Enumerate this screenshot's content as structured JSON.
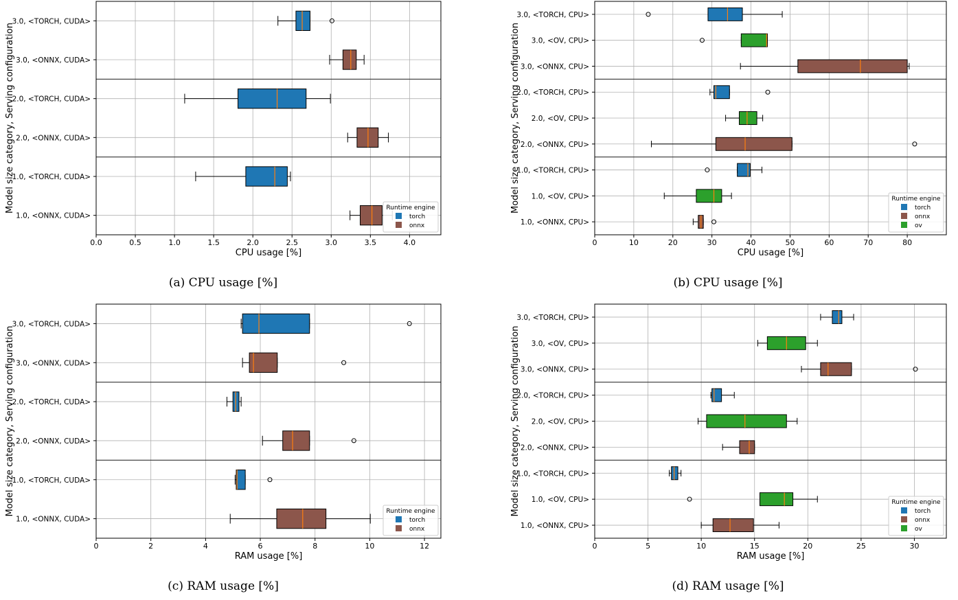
{
  "colors": {
    "torch": "#1f77b4",
    "onnx": "#8c564b",
    "ov": "#2ca02c",
    "median": "#ff7f0e",
    "grid": "#b0b0b0"
  },
  "chart_data": [
    {
      "type": "box",
      "caption": "(a) CPU usage [%]",
      "xlabel": "CPU usage [%]",
      "ylabel": "Model size category, Serving configuration",
      "xlim": [
        0,
        4.4
      ],
      "xticks": [
        "0.0",
        "0.5",
        "1.0",
        "1.5",
        "2.0",
        "2.5",
        "3.0",
        "3.5",
        "4.0"
      ],
      "xtick_values": [
        0,
        0.5,
        1,
        1.5,
        2,
        2.5,
        3,
        3.5,
        4
      ],
      "grid": true,
      "legend": {
        "title": "Runtime engine",
        "entries": [
          "torch",
          "onnx"
        ],
        "placement": "bottom-right"
      },
      "group_separators_after": [
        2,
        4
      ],
      "rows": [
        {
          "label": "3.0, <TORCH, CUDA>",
          "engine": "torch",
          "whislo": 2.32,
          "q1": 2.55,
          "med": 2.63,
          "q3": 2.73,
          "whishi": 2.73,
          "fliers": [
            3.01
          ]
        },
        {
          "label": "3.0, <ONNX, CUDA>",
          "engine": "onnx",
          "whislo": 2.98,
          "q1": 3.15,
          "med": 3.25,
          "q3": 3.32,
          "whishi": 3.42,
          "fliers": []
        },
        {
          "label": "2.0, <TORCH, CUDA>",
          "engine": "torch",
          "whislo": 1.13,
          "q1": 1.81,
          "med": 2.31,
          "q3": 2.68,
          "whishi": 2.99,
          "fliers": []
        },
        {
          "label": "2.0, <ONNX, CUDA>",
          "engine": "onnx",
          "whislo": 3.21,
          "q1": 3.33,
          "med": 3.47,
          "q3": 3.6,
          "whishi": 3.73,
          "fliers": []
        },
        {
          "label": "1.0, <TORCH, CUDA>",
          "engine": "torch",
          "whislo": 1.27,
          "q1": 1.91,
          "med": 2.28,
          "q3": 2.44,
          "whishi": 2.48,
          "fliers": []
        },
        {
          "label": "1.0, <ONNX, CUDA>",
          "engine": "onnx",
          "whislo": 3.24,
          "q1": 3.37,
          "med": 3.52,
          "q3": 3.65,
          "whishi": 3.78,
          "fliers": []
        }
      ]
    },
    {
      "type": "box",
      "caption": "(b) CPU usage [%]",
      "xlabel": "CPU usage [%]",
      "ylabel": "Model size category, Serving configuration",
      "xlim": [
        0,
        90
      ],
      "xticks": [
        "0",
        "10",
        "20",
        "30",
        "40",
        "50",
        "60",
        "70",
        "80"
      ],
      "xtick_values": [
        0,
        10,
        20,
        30,
        40,
        50,
        60,
        70,
        80
      ],
      "grid": true,
      "legend": {
        "title": "Runtime engine",
        "entries": [
          "torch",
          "onnx",
          "ov"
        ],
        "placement": "bottom-right"
      },
      "group_separators_after": [
        3,
        6
      ],
      "rows": [
        {
          "label": "3.0, <TORCH, CPU>",
          "engine": "torch",
          "whislo": 29,
          "q1": 29,
          "med": 34,
          "q3": 37.8,
          "whishi": 48,
          "fliers": [
            13.7
          ]
        },
        {
          "label": "3.0, <OV, CPU>",
          "engine": "ov",
          "whislo": 37.5,
          "q1": 37.5,
          "med": 44,
          "q3": 44.2,
          "whishi": 44.2,
          "fliers": [
            27.5
          ]
        },
        {
          "label": "3.0, <ONNX, CPU>",
          "engine": "onnx",
          "whislo": 37.3,
          "q1": 52,
          "med": 68,
          "q3": 80,
          "whishi": 80.5,
          "fliers": []
        },
        {
          "label": "2.0, <TORCH, CPU>",
          "engine": "torch",
          "whislo": 29.5,
          "q1": 30.5,
          "med": 31,
          "q3": 34.5,
          "whishi": 34.5,
          "fliers": [
            44.3
          ]
        },
        {
          "label": "2.0, <OV, CPU>",
          "engine": "ov",
          "whislo": 33.5,
          "q1": 37,
          "med": 39,
          "q3": 41.5,
          "whishi": 43,
          "fliers": []
        },
        {
          "label": "2.0, <ONNX, CPU>",
          "engine": "onnx",
          "whislo": 14.5,
          "q1": 31,
          "med": 38.5,
          "q3": 50.5,
          "whishi": 50.5,
          "fliers": [
            81.9
          ]
        },
        {
          "label": "1.0, <TORCH, CPU>",
          "engine": "torch",
          "whislo": 36.5,
          "q1": 36.5,
          "med": 39.2,
          "q3": 39.8,
          "whishi": 42.8,
          "fliers": [
            28.8
          ]
        },
        {
          "label": "1.0, <OV, CPU>",
          "engine": "ov",
          "whislo": 17.8,
          "q1": 26,
          "med": 30.5,
          "q3": 32.5,
          "whishi": 35,
          "fliers": []
        },
        {
          "label": "1.0, <ONNX, CPU>",
          "engine": "onnx",
          "whislo": 25.2,
          "q1": 26.5,
          "med": 27.2,
          "q3": 27.8,
          "whishi": 27.8,
          "fliers": [
            30.5
          ]
        }
      ]
    },
    {
      "type": "box",
      "caption": "(c) RAM usage [%]",
      "xlabel": "RAM usage [%]",
      "ylabel": "Model size category, Serving configuration",
      "xlim": [
        0,
        12.6
      ],
      "xticks": [
        "0",
        "2",
        "4",
        "6",
        "8",
        "10",
        "12"
      ],
      "xtick_values": [
        0,
        2,
        4,
        6,
        8,
        10,
        12
      ],
      "grid": true,
      "legend": {
        "title": "Runtime engine",
        "entries": [
          "torch",
          "onnx"
        ],
        "placement": "bottom-right"
      },
      "group_separators_after": [
        2,
        4
      ],
      "rows": [
        {
          "label": "3.0, <TORCH, CUDA>",
          "engine": "torch",
          "whislo": 5.3,
          "q1": 5.35,
          "med": 5.95,
          "q3": 7.8,
          "whishi": 7.8,
          "fliers": [
            11.45
          ]
        },
        {
          "label": "3.0, <ONNX, CUDA>",
          "engine": "onnx",
          "whislo": 5.35,
          "q1": 5.6,
          "med": 5.75,
          "q3": 6.62,
          "whishi": 6.62,
          "fliers": [
            9.05
          ]
        },
        {
          "label": "2.0, <TORCH, CUDA>",
          "engine": "torch",
          "whislo": 4.78,
          "q1": 5.0,
          "med": 5.1,
          "q3": 5.22,
          "whishi": 5.3,
          "fliers": []
        },
        {
          "label": "2.0, <ONNX, CUDA>",
          "engine": "onnx",
          "whislo": 6.08,
          "q1": 6.82,
          "med": 7.18,
          "q3": 7.8,
          "whishi": 7.8,
          "fliers": [
            9.42
          ]
        },
        {
          "label": "1.0, <TORCH, CUDA>",
          "engine": "torch",
          "whislo": 5.08,
          "q1": 5.12,
          "med": 5.15,
          "q3": 5.45,
          "whishi": 5.45,
          "fliers": [
            6.35
          ]
        },
        {
          "label": "1.0, <ONNX, CUDA>",
          "engine": "onnx",
          "whislo": 4.9,
          "q1": 6.6,
          "med": 7.55,
          "q3": 8.4,
          "whishi": 10.02,
          "fliers": []
        }
      ]
    },
    {
      "type": "box",
      "caption": "(d) RAM usage [%]",
      "xlabel": "RAM usage [%]",
      "ylabel": "Model size category, Serving configuration",
      "xlim": [
        0,
        33
      ],
      "xticks": [
        "0",
        "5",
        "10",
        "15",
        "20",
        "25",
        "30"
      ],
      "xtick_values": [
        0,
        5,
        10,
        15,
        20,
        25,
        30
      ],
      "grid": true,
      "legend": {
        "title": "Runtime engine",
        "entries": [
          "torch",
          "onnx",
          "ov"
        ],
        "placement": "bottom-right"
      },
      "group_separators_after": [
        3,
        6
      ],
      "rows": [
        {
          "label": "3.0, <TORCH, CPU>",
          "engine": "torch",
          "whislo": 21.2,
          "q1": 22.3,
          "med": 22.9,
          "q3": 23.2,
          "whishi": 24.3,
          "fliers": []
        },
        {
          "label": "3.0, <OV, CPU>",
          "engine": "ov",
          "whislo": 15.3,
          "q1": 16.2,
          "med": 18,
          "q3": 19.8,
          "whishi": 20.9,
          "fliers": []
        },
        {
          "label": "3.0, <ONNX, CPU>",
          "engine": "onnx",
          "whislo": 19.4,
          "q1": 21.2,
          "med": 21.9,
          "q3": 24.1,
          "whishi": 24.1,
          "fliers": [
            30.1
          ]
        },
        {
          "label": "2.0, <TORCH, CPU>",
          "engine": "torch",
          "whislo": 10.9,
          "q1": 11.0,
          "med": 11.2,
          "q3": 11.9,
          "whishi": 13.1,
          "fliers": []
        },
        {
          "label": "2.0, <OV, CPU>",
          "engine": "ov",
          "whislo": 9.7,
          "q1": 10.5,
          "med": 14.1,
          "q3": 18,
          "whishi": 19.0,
          "fliers": []
        },
        {
          "label": "2.0, <ONNX, CPU>",
          "engine": "onnx",
          "whislo": 12.0,
          "q1": 13.6,
          "med": 14.5,
          "q3": 15.0,
          "whishi": 15.0,
          "fliers": []
        },
        {
          "label": "1.0, <TORCH, CPU>",
          "engine": "torch",
          "whislo": 7.0,
          "q1": 7.2,
          "med": 7.45,
          "q3": 7.8,
          "whishi": 8.1,
          "fliers": []
        },
        {
          "label": "1.0, <OV, CPU>",
          "engine": "ov",
          "whislo": 15.5,
          "q1": 15.5,
          "med": 17.8,
          "q3": 18.6,
          "whishi": 20.9,
          "fliers": [
            8.9
          ]
        },
        {
          "label": "1.0, <ONNX, CPU>",
          "engine": "onnx",
          "whislo": 10.0,
          "q1": 11.1,
          "med": 12.7,
          "q3": 14.9,
          "whishi": 17.3,
          "fliers": []
        }
      ]
    }
  ]
}
